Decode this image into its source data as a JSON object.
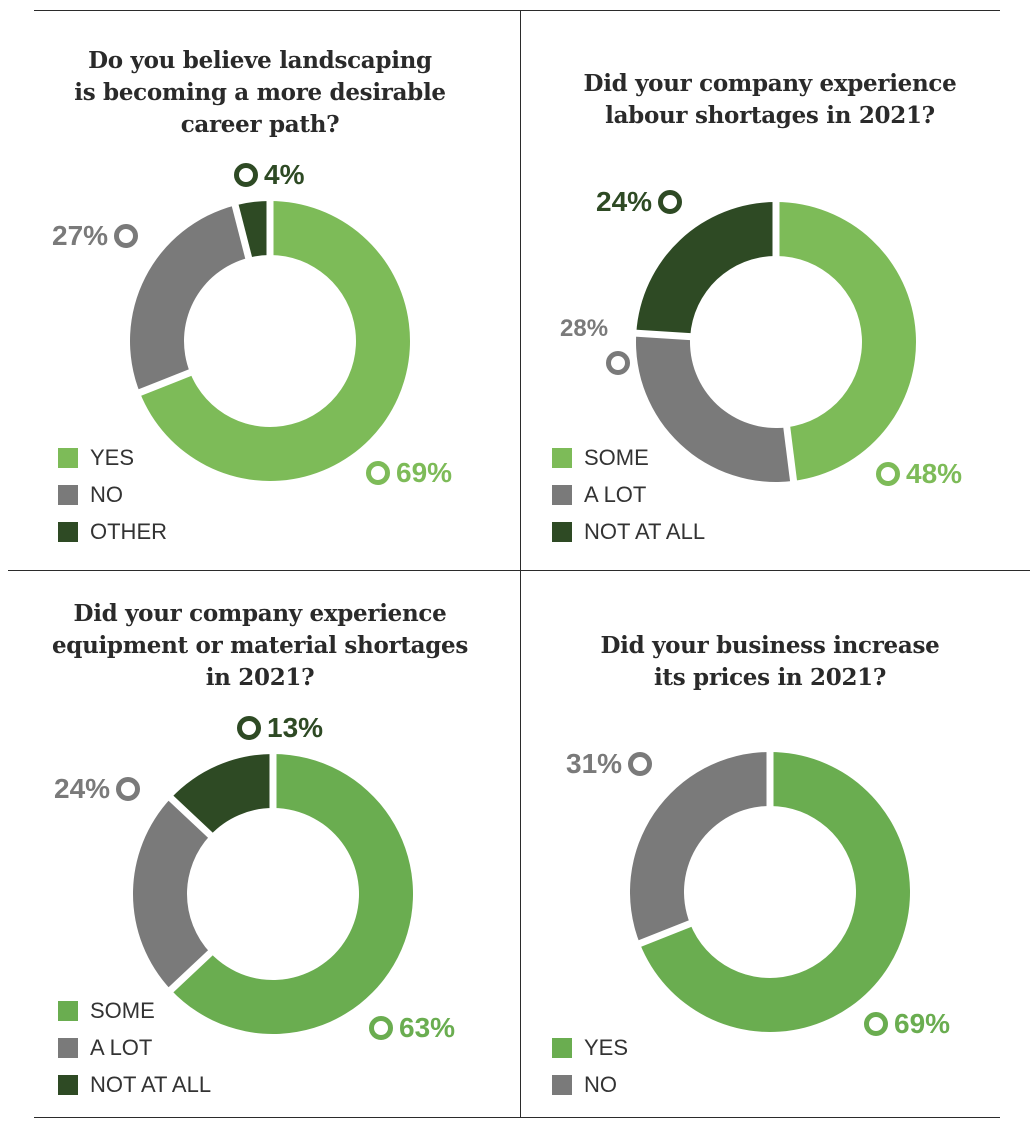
{
  "colors": {
    "green": "#7dbb58",
    "green_alt": "#6aad50",
    "gray": "#7a7a7a",
    "dark": "#2e4a24",
    "text": "#2a2a2a"
  },
  "chart_data": [
    {
      "type": "donut",
      "title": "Do you believe landscaping is becoming a more desirable career path?",
      "title_lines": [
        "Do you believe landscaping",
        "is becoming a more desirable",
        "career path?"
      ],
      "legend": [
        "YES",
        "NO",
        "OTHER"
      ],
      "slices": [
        {
          "name": "YES",
          "value": 69,
          "label": "69%",
          "color": "#7dbb58"
        },
        {
          "name": "NO",
          "value": 27,
          "label": "27%",
          "color": "#7a7a7a"
        },
        {
          "name": "OTHER",
          "value": 4,
          "label": "4%",
          "color": "#2e4a24"
        }
      ]
    },
    {
      "type": "donut",
      "title": "Did your company experience labour shortages in 2021?",
      "title_lines": [
        "Did your company experience",
        "labour shortages in 2021?"
      ],
      "legend": [
        "SOME",
        "A LOT",
        "NOT AT ALL"
      ],
      "slices": [
        {
          "name": "SOME",
          "value": 48,
          "label": "48%",
          "color": "#7dbb58"
        },
        {
          "name": "A LOT",
          "value": 28,
          "label": "28%",
          "color": "#7a7a7a"
        },
        {
          "name": "NOT AT ALL",
          "value": 24,
          "label": "24%",
          "color": "#2e4a24"
        }
      ]
    },
    {
      "type": "donut",
      "title": "Did your company experience equipment or material shortages in 2021?",
      "title_lines": [
        "Did your company experience",
        "equipment or material shortages",
        "in 2021?"
      ],
      "legend": [
        "SOME",
        "A LOT",
        "NOT AT ALL"
      ],
      "slices": [
        {
          "name": "SOME",
          "value": 63,
          "label": "63%",
          "color": "#6aad50"
        },
        {
          "name": "A LOT",
          "value": 24,
          "label": "24%",
          "color": "#7a7a7a"
        },
        {
          "name": "NOT AT ALL",
          "value": 13,
          "label": "13%",
          "color": "#2e4a24"
        }
      ]
    },
    {
      "type": "donut",
      "title": "Did your business increase its prices in 2021?",
      "title_lines": [
        "Did your business increase",
        "its prices in 2021?"
      ],
      "legend": [
        "YES",
        "NO"
      ],
      "slices": [
        {
          "name": "YES",
          "value": 69,
          "label": "69%",
          "color": "#6aad50"
        },
        {
          "name": "NO",
          "value": 31,
          "label": "31%",
          "color": "#7a7a7a"
        }
      ]
    }
  ]
}
